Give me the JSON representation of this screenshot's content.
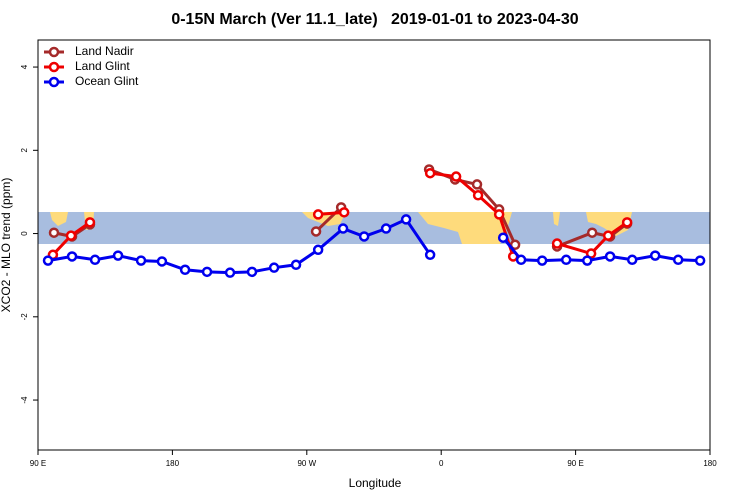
{
  "chart_data": {
    "type": "line",
    "title": "0-15N March (Ver 11.1_late)   2019-01-01 to 2023-04-30",
    "x_label": "Longitude",
    "y_label": "XCO2 - MLO trend (ppm)",
    "xlim": [
      90,
      540
    ],
    "ylim": [
      -5.2,
      4.65
    ],
    "xticks": [
      {
        "value": 90,
        "label": "90 E"
      },
      {
        "value": 180,
        "label": "180"
      },
      {
        "value": 270,
        "label": "90 W"
      },
      {
        "value": 360,
        "label": "0"
      },
      {
        "value": 450,
        "label": "90 E"
      },
      {
        "value": 540,
        "label": "180"
      }
    ],
    "yticks": [
      -4,
      -2,
      0,
      2,
      4
    ],
    "legend": "top-left",
    "series": [
      {
        "name": "Land Nadir",
        "color": "#a52a2a",
        "x": [
          100.7,
          112.8,
          124.8,
          190,
          276.2,
          293,
          320,
          351.9,
          369.3,
          384,
          398.8,
          409.5,
          420,
          437.6,
          461.1,
          473.1,
          484.5
        ],
        "values": [
          0.02,
          -0.07,
          0.22,
          null,
          0.05,
          0.63,
          null,
          1.54,
          1.3,
          1.18,
          0.58,
          -0.27,
          null,
          -0.31,
          0.02,
          -0.07,
          0.24
        ]
      },
      {
        "name": "Land Glint",
        "color": "#ee0000",
        "x": [
          100,
          112.1,
          124.8,
          190,
          277.6,
          295,
          320,
          352.6,
          370,
          384.7,
          398.8,
          408.2,
          420,
          437.6,
          460.4,
          471.8,
          484.5
        ],
        "values": [
          -0.51,
          -0.05,
          0.27,
          null,
          0.46,
          0.51,
          null,
          1.45,
          1.37,
          0.92,
          0.46,
          -0.55,
          null,
          -0.24,
          -0.48,
          -0.05,
          0.27
        ]
      },
      {
        "name": "Ocean Glint",
        "color": "#0000ee",
        "x": [
          96.7,
          112.8,
          128.2,
          143.6,
          159,
          173,
          188.5,
          203.2,
          218.6,
          233.3,
          248.1,
          262.8,
          277.6,
          294.3,
          308.4,
          323.1,
          336.5,
          352.6,
          377.5,
          401.5,
          413.5,
          427.6,
          443.7,
          457.8,
          473.1,
          487.9,
          503.3,
          518.7,
          533.4
        ],
        "values": [
          -0.65,
          -0.55,
          -0.63,
          -0.53,
          -0.65,
          -0.67,
          -0.87,
          -0.92,
          -0.94,
          -0.92,
          -0.82,
          -0.75,
          -0.39,
          0.12,
          -0.07,
          0.12,
          0.34,
          -0.51,
          null,
          -0.1,
          -0.63,
          -0.65,
          -0.63,
          -0.65,
          -0.55,
          -0.63,
          -0.53,
          -0.63,
          -0.65
        ]
      }
    ]
  }
}
